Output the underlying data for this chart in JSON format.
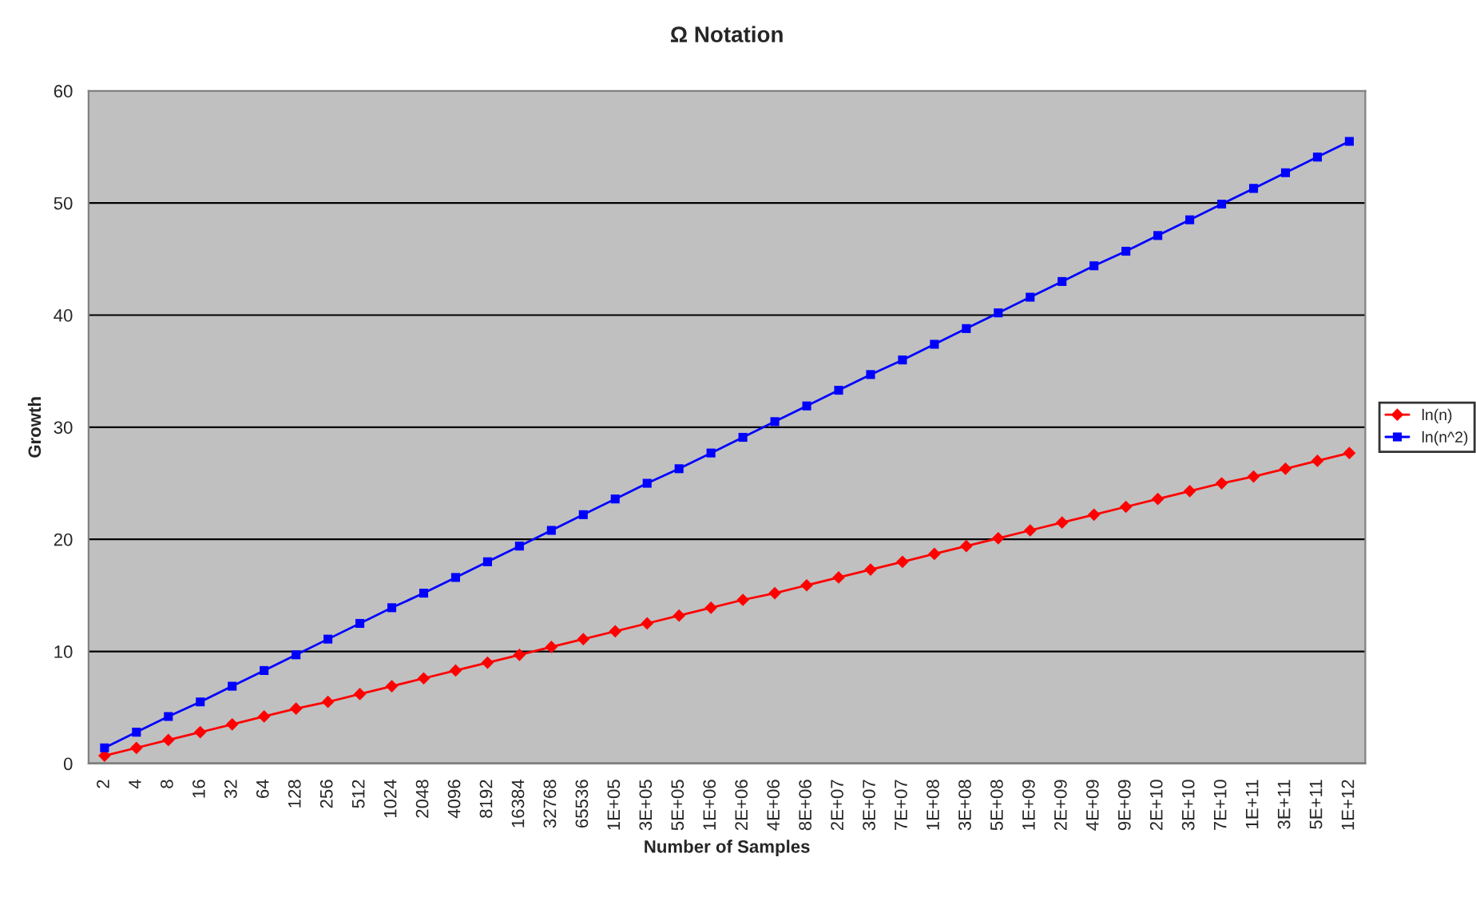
{
  "chart_data": {
    "type": "line",
    "title": "Ω Notation",
    "xlabel": "Number of Samples",
    "ylabel": "Growth",
    "categories": [
      "2",
      "4",
      "8",
      "16",
      "32",
      "64",
      "128",
      "256",
      "512",
      "1024",
      "2048",
      "4096",
      "8192",
      "16384",
      "32768",
      "65536",
      "1E+05",
      "3E+05",
      "5E+05",
      "1E+06",
      "2E+06",
      "4E+06",
      "8E+06",
      "2E+07",
      "3E+07",
      "7E+07",
      "1E+08",
      "3E+08",
      "5E+08",
      "1E+09",
      "2E+09",
      "4E+09",
      "9E+09",
      "2E+10",
      "3E+10",
      "7E+10",
      "1E+11",
      "3E+11",
      "5E+11",
      "1E+12"
    ],
    "series": [
      {
        "name": "ln(n)",
        "color": "#ff0000",
        "marker": "diamond",
        "values": [
          0.7,
          1.4,
          2.1,
          2.8,
          3.5,
          4.2,
          4.9,
          5.5,
          6.2,
          6.9,
          7.6,
          8.3,
          9.0,
          9.7,
          10.4,
          11.1,
          11.8,
          12.5,
          13.2,
          13.9,
          14.6,
          15.2,
          15.9,
          16.6,
          17.3,
          18.0,
          18.7,
          19.4,
          20.1,
          20.8,
          21.5,
          22.2,
          22.9,
          23.6,
          24.3,
          25.0,
          25.6,
          26.3,
          27.0,
          27.7
        ]
      },
      {
        "name": "ln(n^2)",
        "color": "#0000ff",
        "marker": "square",
        "values": [
          1.4,
          2.8,
          4.2,
          5.5,
          6.9,
          8.3,
          9.7,
          11.1,
          12.5,
          13.9,
          15.2,
          16.6,
          18.0,
          19.4,
          20.8,
          22.2,
          23.6,
          25.0,
          26.3,
          27.7,
          29.1,
          30.5,
          31.9,
          33.3,
          34.7,
          36.0,
          37.4,
          38.8,
          40.2,
          41.6,
          43.0,
          44.4,
          45.7,
          47.1,
          48.5,
          49.9,
          51.3,
          52.7,
          54.1,
          55.5
        ]
      }
    ],
    "ylim": [
      0,
      60
    ],
    "yticks": [
      0,
      10,
      20,
      30,
      40,
      50,
      60
    ],
    "grid": "y",
    "legend": "right",
    "line_style": "solid"
  }
}
